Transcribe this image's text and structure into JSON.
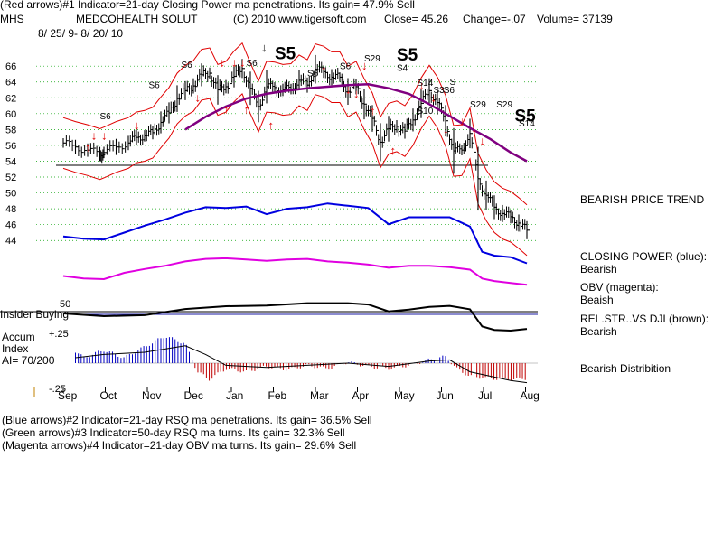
{
  "header": {
    "line1": "(Red arrows)#1 Indicator=21-day Closing Power ma penetrations. Its gain= 47.9% Sell",
    "ticker": "MHS",
    "company": "MEDCOHEALTH SOLUT",
    "copyright": "(C) 2010 www.tigersoft.com",
    "close": "Close= 45.26",
    "change": "Change=-.07",
    "volume": "Volume= 37139",
    "daterange": "8/ 25/ 9- 8/ 20/ 10"
  },
  "panel_labels": {
    "insider": "Insider Buying",
    "accum_title": "Accum",
    "accum_index": "Index",
    "ai": "AI= 70/200",
    "plus25": "+.25",
    "minus25": "-.25",
    "rs_50": "50"
  },
  "right_notes": {
    "trend": "BEARISH PRICE TREND",
    "cp_1": "CLOSING POWER (blue):",
    "cp_2": "Bearish",
    "obv_1": "OBV (magenta):",
    "obv_2": "Beaish",
    "rs_1": "REL.STR..VS DJI (brown):",
    "rs_2": "Bearish",
    "dist": "Bearish Distribition"
  },
  "footer": {
    "l1": "(Blue arrows)#2 Indicator=21-day RSQ ma penetrations. Its gain= 36.5% Sell",
    "l2": "(Green arrows)#3 Indicator=50-day RSQ ma turns. Its gain= 32.3% Sell",
    "l3": "(Magenta arrows)#4 Indicator=21-day OBV ma turns. Its gain= 29.6% Sell"
  },
  "colors": {
    "price": "#000000",
    "bands": "#e00000",
    "ma": "#800080",
    "closing_power": "#0000e0",
    "obv": "#e000e0",
    "rel_strength": "#000000",
    "grid": "#00a000",
    "accum_pos": "#0000c0",
    "accum_neg": "#c00000",
    "signal": "#e00000"
  },
  "chart_data": {
    "type": "line",
    "x_ticks": [
      "Sep",
      "Oct",
      "Nov",
      "Dec",
      "Jan",
      "Feb",
      "Mar",
      "Apr",
      "May",
      "Jun",
      "Jul",
      "Aug"
    ],
    "y_ticks": [
      44,
      46,
      48,
      50,
      52,
      54,
      56,
      58,
      60,
      62,
      64,
      66
    ],
    "ylim": [
      43,
      67.5
    ],
    "price_series": {
      "name": "MHS",
      "x": [
        0,
        0.3,
        0.6,
        0.9,
        1.0,
        1.3,
        1.6,
        1.8,
        2.0,
        2.2,
        2.4,
        2.6,
        2.8,
        3.0,
        3.2,
        3.4,
        3.6,
        3.8,
        4.0,
        4.2,
        4.4,
        4.6,
        4.8,
        5.0,
        5.2,
        5.4,
        5.6,
        5.8,
        6.0,
        6.2,
        6.4,
        6.6,
        6.8,
        7.0,
        7.2,
        7.4,
        7.6,
        7.8,
        8.0,
        8.2,
        8.4,
        8.6,
        8.8,
        9.0,
        9.2,
        9.4,
        9.6,
        9.8,
        10.0,
        10.2,
        10.4,
        10.6,
        10.8,
        11.0,
        11.2,
        11.4
      ],
      "values": [
        56.3,
        55.8,
        55.4,
        54.9,
        55.1,
        55.8,
        56.3,
        57.0,
        57.2,
        57.6,
        58.9,
        60.1,
        61.9,
        62.9,
        63.5,
        64.9,
        65.1,
        63.0,
        63.4,
        64.7,
        65.7,
        63.2,
        60.9,
        63.4,
        63.3,
        63.0,
        63.1,
        64.2,
        63.6,
        65.6,
        65.3,
        64.6,
        64.6,
        62.8,
        63.4,
        61.2,
        59.4,
        56.4,
        58.1,
        58.4,
        57.8,
        59.2,
        61.3,
        62.9,
        61.4,
        59.1,
        55.3,
        55.4,
        57.5,
        51.8,
        49.7,
        48.2,
        47.4,
        47.0,
        46.2,
        45.3
      ]
    },
    "ma_series": {
      "name": "",
      "x": [
        3.0,
        3.5,
        4.0,
        4.5,
        5.0,
        5.5,
        6.0,
        6.5,
        7.0,
        7.5,
        8.0,
        8.5,
        9.0,
        9.5,
        10.0,
        10.5,
        11.0,
        11.4
      ],
      "values": [
        58.0,
        59.6,
        60.9,
        61.9,
        62.5,
        62.9,
        63.2,
        63.4,
        63.6,
        63.7,
        63.2,
        62.5,
        61.2,
        59.7,
        58.2,
        56.8,
        55.1,
        54.0
      ]
    },
    "closing_power": {
      "name": "CLOSING POWER",
      "x": [
        0,
        0.5,
        1.0,
        1.5,
        2.0,
        2.5,
        3.0,
        3.5,
        4.0,
        4.5,
        5.0,
        5.5,
        6.0,
        6.5,
        7.0,
        7.5,
        8.0,
        8.5,
        9.0,
        9.5,
        10.0,
        10.3,
        10.6,
        11.0,
        11.4
      ],
      "values": [
        0.45,
        0.42,
        0.41,
        0.5,
        0.59,
        0.67,
        0.76,
        0.83,
        0.82,
        0.84,
        0.74,
        0.81,
        0.83,
        0.88,
        0.85,
        0.82,
        0.61,
        0.7,
        0.7,
        0.7,
        0.58,
        0.25,
        0.2,
        0.18,
        0.1
      ]
    },
    "obv": {
      "name": "OBV",
      "x": [
        0,
        0.5,
        1.0,
        1.5,
        2.0,
        2.5,
        3.0,
        3.5,
        4.0,
        4.5,
        5.0,
        5.5,
        6.0,
        6.5,
        7.0,
        7.5,
        8.0,
        8.5,
        9.0,
        9.5,
        10.0,
        10.3,
        10.6,
        11.0,
        11.4
      ],
      "values": [
        0.35,
        0.31,
        0.3,
        0.4,
        0.46,
        0.51,
        0.58,
        0.62,
        0.63,
        0.61,
        0.59,
        0.61,
        0.62,
        0.58,
        0.56,
        0.53,
        0.48,
        0.51,
        0.51,
        0.49,
        0.45,
        0.31,
        0.27,
        0.24,
        0.21
      ]
    },
    "rel_strength": {
      "name": "REL.STR..VS DJI",
      "x": [
        0,
        1,
        2,
        3,
        4,
        5,
        6,
        7,
        7.5,
        8,
        8.5,
        9,
        9.5,
        10,
        10.3,
        10.6,
        11,
        11.4
      ],
      "values": [
        0.5,
        0.42,
        0.45,
        0.63,
        0.71,
        0.73,
        0.8,
        0.8,
        0.76,
        0.56,
        0.61,
        0.69,
        0.72,
        0.62,
        0.12,
        0.02,
        0.0,
        0.05
      ]
    },
    "accum_index": {
      "name": "Accum Index",
      "x": [
        0,
        0.5,
        1.0,
        1.5,
        2.0,
        2.5,
        3.0,
        3.3,
        3.6,
        4.0,
        4.5,
        5.0,
        5.5,
        6.0,
        6.5,
        7.0,
        7.5,
        8.0,
        8.5,
        9.0,
        9.4,
        9.7,
        10.0,
        10.5,
        11.0,
        11.4
      ],
      "values": [
        0.2,
        0.05,
        0.12,
        0.05,
        0.15,
        0.25,
        0.18,
        -0.08,
        -0.15,
        -0.05,
        -0.08,
        -0.03,
        -0.06,
        -0.02,
        -0.05,
        0.01,
        -0.03,
        -0.05,
        -0.02,
        0.03,
        0.06,
        -0.06,
        -0.12,
        -0.14,
        -0.15,
        -0.14
      ]
    },
    "support_line": 53.2
  }
}
